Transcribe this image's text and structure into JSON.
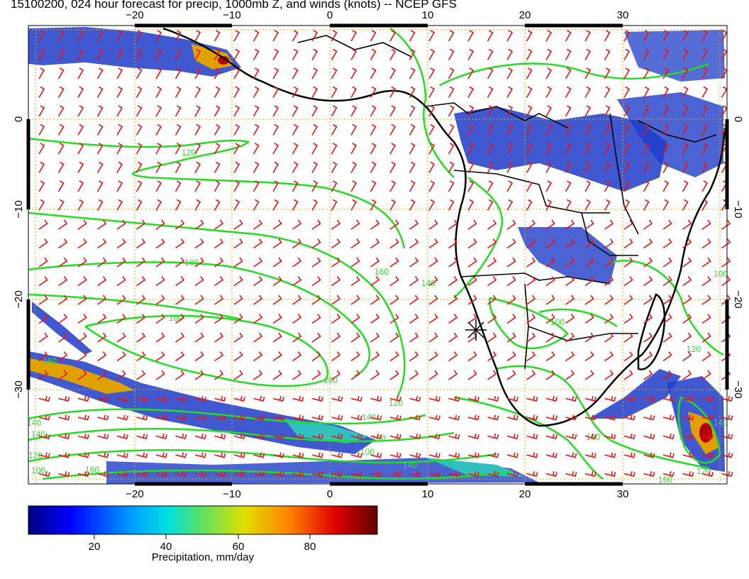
{
  "title": "15100200, 024 hour forecast for precip, 1000mb Z, and winds (knots) -- NCEP GFS",
  "map": {
    "lon_ticks": [
      -20,
      -10,
      0,
      10,
      20,
      30
    ],
    "lat_ticks": [
      0,
      -10,
      -20,
      -30
    ],
    "lon_labels": [
      "−20",
      "−10",
      "0",
      "10",
      "20",
      "30"
    ],
    "lat_labels": [
      "0",
      "−10",
      "−20",
      "−30"
    ],
    "contour_labels": [
      "120",
      "180",
      "180",
      "160",
      "140",
      "120",
      "100",
      "120",
      "180",
      "160",
      "140",
      "140",
      "120",
      "100",
      "160",
      "180",
      "140",
      "100",
      "140",
      "160",
      "140",
      "120",
      "160",
      "100"
    ],
    "colors": {
      "contour": "#22dd22",
      "barb": "#ee1111",
      "grid": "#ddaa00",
      "coast": "#000000"
    }
  },
  "colorbar": {
    "label": "Precipitation, mm/day",
    "ticks": [
      "20",
      "40",
      "60",
      "80"
    ],
    "tick_values": [
      20,
      40,
      60,
      80
    ],
    "range": [
      0,
      100
    ],
    "stops": [
      "#000080",
      "#0000ff",
      "#00a0ff",
      "#00e0e0",
      "#60e060",
      "#e0e000",
      "#ff8000",
      "#e00000",
      "#600000"
    ]
  }
}
